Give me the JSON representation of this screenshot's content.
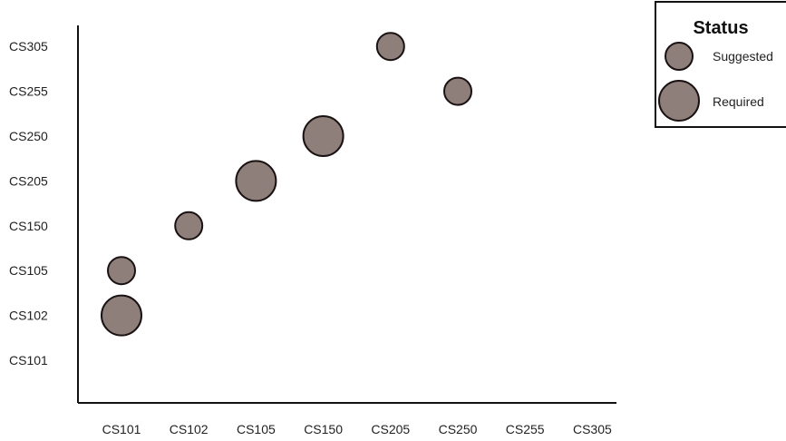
{
  "chart_data": {
    "type": "scatter",
    "x_categories": [
      "CS101",
      "CS102",
      "CS105",
      "CS150",
      "CS205",
      "CS250",
      "CS255",
      "CS305"
    ],
    "y_categories": [
      "CS101",
      "CS102",
      "CS105",
      "CS150",
      "CS205",
      "CS250",
      "CS255",
      "CS305"
    ],
    "points": [
      {
        "x": "CS101",
        "y": "CS102",
        "status": "Required"
      },
      {
        "x": "CS101",
        "y": "CS105",
        "status": "Suggested"
      },
      {
        "x": "CS102",
        "y": "CS150",
        "status": "Suggested"
      },
      {
        "x": "CS105",
        "y": "CS205",
        "status": "Required"
      },
      {
        "x": "CS150",
        "y": "CS250",
        "status": "Required"
      },
      {
        "x": "CS205",
        "y": "CS305",
        "status": "Suggested"
      },
      {
        "x": "CS250",
        "y": "CS255",
        "status": "Suggested"
      }
    ],
    "legend": {
      "title": "Status",
      "entries": [
        "Suggested",
        "Required"
      ],
      "placement": "top-right"
    },
    "colors": {
      "marker_fill": "#8e7f7a",
      "marker_stroke": "#1a1212",
      "axis": "#111111"
    },
    "grid": false
  }
}
